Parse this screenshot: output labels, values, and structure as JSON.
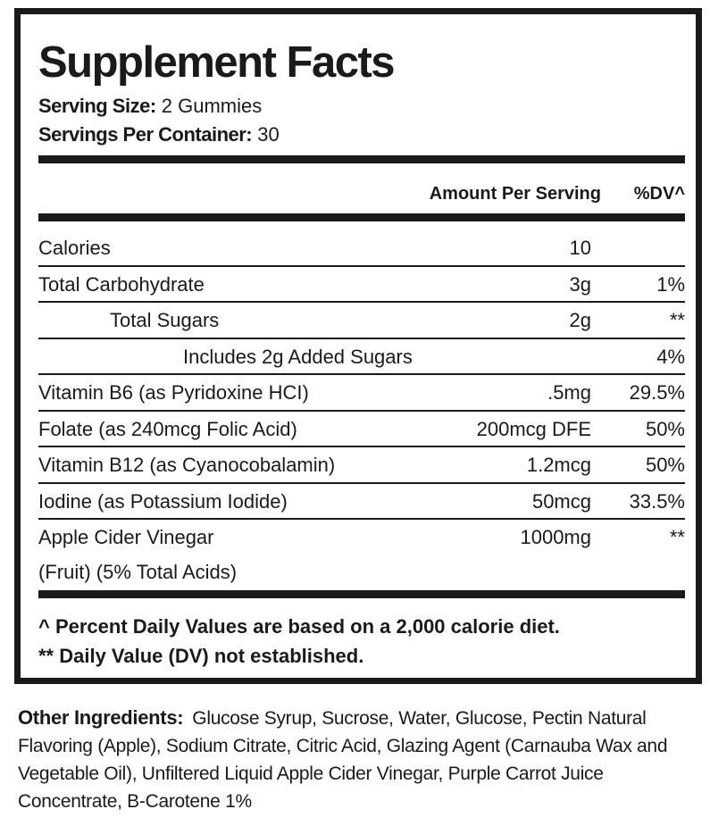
{
  "title": "Supplement Facts",
  "serving_size": {
    "label": "Serving Size:",
    "value": "2 Gummies"
  },
  "servings_per_container": {
    "label": "Servings Per Container:",
    "value": "30"
  },
  "header": {
    "amount": "Amount Per Serving",
    "dv": "%DV^"
  },
  "rows": [
    {
      "name": "Calories",
      "amount": "10",
      "dv": ""
    },
    {
      "name": "Total Carbohydrate",
      "amount": "3g",
      "dv": "1%"
    },
    {
      "name": "Total Sugars",
      "amount": "2g",
      "dv": "**"
    },
    {
      "name": "Includes 2g Added Sugars",
      "amount": "",
      "dv": "4%"
    },
    {
      "name": "Vitamin B6 (as Pyridoxine HCI)",
      "amount": ".5mg",
      "dv": "29.5%"
    },
    {
      "name": "Folate (as 240mcg Folic Acid)",
      "amount": "200mcg DFE",
      "dv": "50%"
    },
    {
      "name": "Vitamin B12 (as Cyanocobalamin)",
      "amount": "1.2mcg",
      "dv": "50%"
    },
    {
      "name": "Iodine (as Potassium Iodide)",
      "amount": "50mcg",
      "dv": "33.5%"
    },
    {
      "name": "Apple Cider Vinegar",
      "name_line2": "(Fruit) (5% Total Acids)",
      "amount": "1000mg",
      "dv": "**"
    }
  ],
  "footnotes": [
    "^ Percent Daily Values are based on a 2,000 calorie diet.",
    "** Daily Value (DV) not established."
  ],
  "other_ingredients": {
    "label": "Other Ingredients:",
    "text": "Glucose Syrup, Sucrose, Water, Glucose, Pectin Natural Flavoring (Apple), Sodium Citrate, Citric Acid, Glazing Agent (Carnauba Wax and Vegetable Oil), Unfiltered Liquid Apple Cider Vinegar, Purple Carrot Juice Concentrate, B-Carotene 1%"
  }
}
